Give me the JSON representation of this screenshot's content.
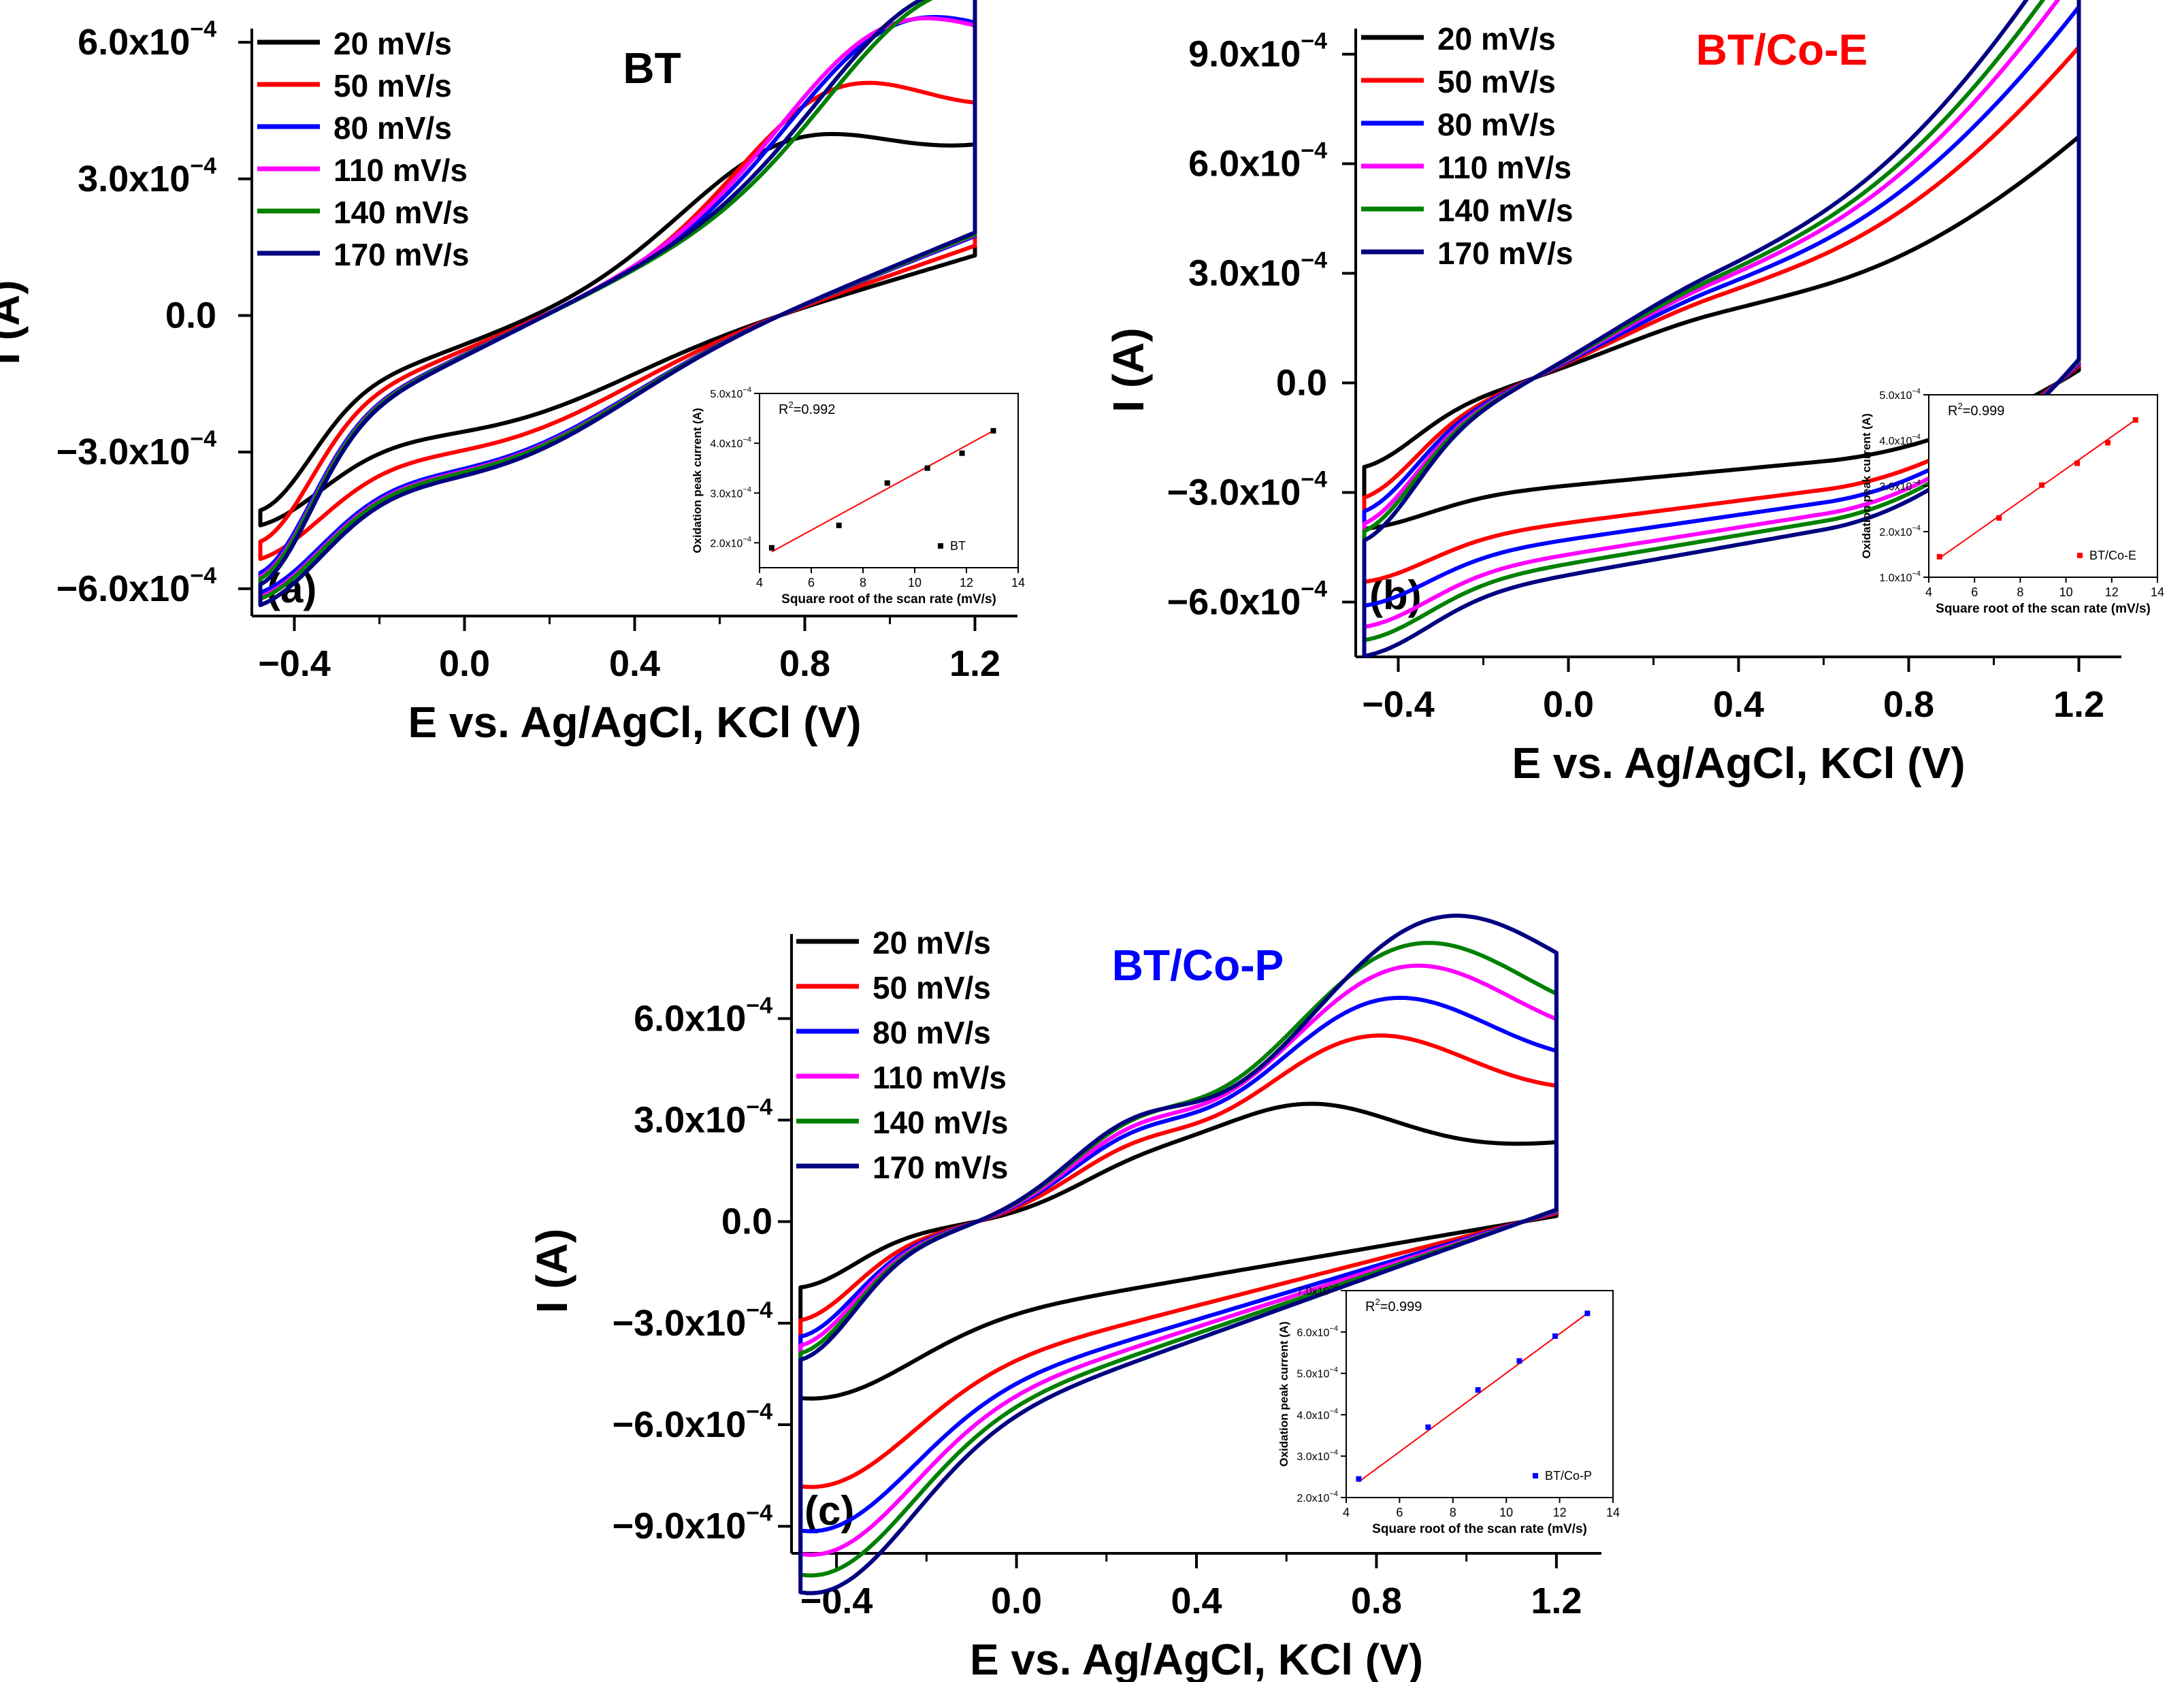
{
  "chart_data": [
    {
      "type": "line",
      "panel_label": "(a)",
      "title": "BT",
      "title_color": "#000000",
      "xlabel": "E vs. Ag/AgCl, KCl (V)",
      "ylabel": "I (A)",
      "xlim": [
        -0.5,
        1.3
      ],
      "ylim": [
        -0.00066,
        0.00063
      ],
      "xticks": [
        {
          "v": -0.4,
          "label": "-0.4"
        },
        {
          "v": 0.0,
          "label": "0.0"
        },
        {
          "v": 0.4,
          "label": "0.4"
        },
        {
          "v": 0.8,
          "label": "0.8"
        },
        {
          "v": 1.2,
          "label": "1.2"
        }
      ],
      "yticks": [
        {
          "v": 0.0006,
          "mant": "6.0x10",
          "exp": "-4"
        },
        {
          "v": 0.0003,
          "mant": "3.0x10",
          "exp": "-4"
        },
        {
          "v": 0.0,
          "mant": "0.0",
          "exp": ""
        },
        {
          "v": -0.0003,
          "mant": "-3.0x10",
          "exp": "-4"
        },
        {
          "v": -0.0006,
          "mant": "-6.0x10",
          "exp": "-4"
        }
      ],
      "series": [
        {
          "name": "20 mV/s",
          "color": "#000000",
          "scale": 1.0,
          "pos": 0.75,
          "peak": 0.00019,
          "wid": 0.24
        },
        {
          "name": "50 mV/s",
          "color": "#ff0000",
          "scale": 1.16,
          "pos": 0.86,
          "peak": 0.00023,
          "wid": 0.22
        },
        {
          "name": "80 mV/s",
          "color": "#0000ff",
          "scale": 1.32,
          "pos": 1.0,
          "peak": 0.00027,
          "wid": 0.24
        },
        {
          "name": "110 mV/s",
          "color": "#ff00ff",
          "scale": 1.34,
          "pos": 0.98,
          "peak": 0.00027,
          "wid": 0.24
        },
        {
          "name": "140 mV/s",
          "color": "#008000",
          "scale": 1.35,
          "pos": 1.1,
          "peak": 0.00028,
          "wid": 0.25
        },
        {
          "name": "170 mV/s",
          "color": "#000080",
          "scale": 1.38,
          "pos": 1.08,
          "peak": 0.00028,
          "wid": 0.25
        }
      ],
      "curve_model": {
        "slope_fwd": 0.00034,
        "slope_rev": 0.00028,
        "bias_fwd": 2e-05,
        "bias_rev": -5e-05,
        "cross_fwd": 0.25,
        "cross_rev": 0.55,
        "peak_rev": 6e-05,
        "pos_rev": 0.15,
        "wid_rev": 0.25
      },
      "inset": {
        "xlabel": "Square root of the scan rate (mV/s)",
        "ylabel": "Oxidation peak current (A)",
        "xlim": [
          4,
          14
        ],
        "ylim": [
          0.00015,
          0.0005
        ],
        "xticks": [
          "4",
          "6",
          "8",
          "10",
          "12",
          "14"
        ],
        "yticks": [
          {
            "v": 0.0002,
            "label": "2.0x10"
          },
          {
            "v": 0.0003,
            "label": "3.0x10"
          },
          {
            "v": 0.0004,
            "label": "4.0x10"
          },
          {
            "v": 0.0005,
            "label": "5.0x10"
          }
        ],
        "r2": "R2=0.992",
        "legend": "BT",
        "marker_color": "#000000",
        "x": [
          4.47,
          7.07,
          8.94,
          10.49,
          11.83,
          13.04
        ],
        "y": [
          0.00019,
          0.000235,
          0.00032,
          0.00035,
          0.00038,
          0.000425
        ],
        "fit": [
          [
            4.47,
            0.000182
          ],
          [
            13.04,
            0.000425
          ]
        ]
      }
    },
    {
      "type": "line",
      "panel_label": "(b)",
      "title": "BT/Co-E",
      "title_color": "#ff0000",
      "xlabel": "E vs. Ag/AgCl, KCl (V)",
      "ylabel": "I (A)",
      "xlim": [
        -0.5,
        1.3
      ],
      "ylim": [
        -0.00075,
        0.00097
      ],
      "xticks": [
        {
          "v": -0.4,
          "label": "-0.4"
        },
        {
          "v": 0.0,
          "label": "0.0"
        },
        {
          "v": 0.4,
          "label": "0.4"
        },
        {
          "v": 0.8,
          "label": "0.8"
        },
        {
          "v": 1.2,
          "label": "1.2"
        }
      ],
      "yticks": [
        {
          "v": 0.0009,
          "mant": "9.0x10",
          "exp": "-4"
        },
        {
          "v": 0.0006,
          "mant": "6.0x10",
          "exp": "-4"
        },
        {
          "v": 0.0003,
          "mant": "3.0x10",
          "exp": "-4"
        },
        {
          "v": 0.0,
          "mant": "0.0",
          "exp": ""
        },
        {
          "v": -0.0003,
          "mant": "-3.0x10",
          "exp": "-4"
        },
        {
          "v": -0.0006,
          "mant": "-6.0x10",
          "exp": "-4"
        }
      ],
      "series": [
        {
          "name": "20 mV/s",
          "color": "#000000",
          "scale": 0.55,
          "pos": 0.35,
          "peak": 6e-05,
          "wid": 0.25
        },
        {
          "name": "50 mV/s",
          "color": "#ff0000",
          "scale": 0.75,
          "pos": 0.35,
          "peak": 6e-05,
          "wid": 0.25
        },
        {
          "name": "80 mV/s",
          "color": "#0000ff",
          "scale": 0.84,
          "pos": 0.35,
          "peak": 6e-05,
          "wid": 0.25
        },
        {
          "name": "110 mV/s",
          "color": "#ff00ff",
          "scale": 0.92,
          "pos": 0.35,
          "peak": 6e-05,
          "wid": 0.25
        },
        {
          "name": "140 mV/s",
          "color": "#008000",
          "scale": 0.97,
          "pos": 0.35,
          "peak": 6e-05,
          "wid": 0.25
        },
        {
          "name": "170 mV/s",
          "color": "#000080",
          "scale": 1.03,
          "pos": 0.35,
          "peak": 6e-05,
          "wid": 0.25
        }
      ],
      "curve_model": {
        "slope_fwd": 0.00055,
        "slope_rev": 0.0002,
        "bias_fwd": 0.0001,
        "bias_rev": -0.00042,
        "cross_fwd": 0.1,
        "cross_rev": 0.45,
        "peak_rev": 0.0,
        "pos_rev": 0.2,
        "wid_rev": 0.3,
        "tail": 0.0012
      },
      "inset": {
        "xlabel": "Square root of the scan rate (mV/s)",
        "ylabel": "Oxidation peak current (A)",
        "xlim": [
          4,
          14
        ],
        "ylim": [
          0.0001,
          0.0005
        ],
        "xticks": [
          "4",
          "6",
          "8",
          "10",
          "12",
          "14"
        ],
        "yticks": [
          {
            "v": 0.0001,
            "label": "1.0x10"
          },
          {
            "v": 0.0002,
            "label": "2.0x10"
          },
          {
            "v": 0.0003,
            "label": "3.0x10"
          },
          {
            "v": 0.0004,
            "label": "4.0x10"
          },
          {
            "v": 0.0005,
            "label": "5.0x10"
          }
        ],
        "r2": "R2=0.999",
        "legend": "BT/Co-E",
        "marker_color": "#ff0000",
        "x": [
          4.47,
          7.07,
          8.94,
          10.49,
          11.83,
          13.04
        ],
        "y": [
          0.000145,
          0.00023,
          0.000302,
          0.00035,
          0.000395,
          0.000445
        ],
        "fit": [
          [
            4.47,
            0.000142
          ],
          [
            13.04,
            0.000445
          ]
        ]
      }
    },
    {
      "type": "line",
      "panel_label": "(c)",
      "title": "BT/Co-P",
      "title_color": "#0000ff",
      "xlabel": "E vs. Ag/AgCl, KCl (V)",
      "ylabel": "I (A)",
      "xlim": [
        -0.5,
        1.3
      ],
      "ylim": [
        -0.00098,
        0.00085
      ],
      "xticks": [
        {
          "v": -0.4,
          "label": "-0.4"
        },
        {
          "v": 0.0,
          "label": "0.0"
        },
        {
          "v": 0.4,
          "label": "0.4"
        },
        {
          "v": 0.8,
          "label": "0.8"
        },
        {
          "v": 1.2,
          "label": "1.2"
        }
      ],
      "yticks": [
        {
          "v": 0.0006,
          "mant": "6.0x10",
          "exp": "-4"
        },
        {
          "v": 0.0003,
          "mant": "3.0x10",
          "exp": "-4"
        },
        {
          "v": 0.0,
          "mant": "0.0",
          "exp": ""
        },
        {
          "v": -0.0003,
          "mant": "-3.0x10",
          "exp": "-4"
        },
        {
          "v": -0.0006,
          "mant": "-6.0x10",
          "exp": "-4"
        },
        {
          "v": -0.0009,
          "mant": "-9.0x10",
          "exp": "-4"
        }
      ],
      "series": [
        {
          "name": "20 mV/s",
          "color": "#000000",
          "scale": 0.6,
          "pos": 0.62,
          "peak": 0.00022,
          "wid": 0.22
        },
        {
          "name": "50 mV/s",
          "color": "#ff0000",
          "scale": 0.9,
          "pos": 0.76,
          "peak": 0.00032,
          "wid": 0.24
        },
        {
          "name": "80 mV/s",
          "color": "#0000ff",
          "scale": 1.05,
          "pos": 0.8,
          "peak": 0.00038,
          "wid": 0.25
        },
        {
          "name": "110 mV/s",
          "color": "#ff00ff",
          "scale": 1.13,
          "pos": 0.84,
          "peak": 0.00044,
          "wid": 0.26
        },
        {
          "name": "140 mV/s",
          "color": "#008000",
          "scale": 1.2,
          "pos": 0.86,
          "peak": 0.00048,
          "wid": 0.27
        },
        {
          "name": "170 mV/s",
          "color": "#000080",
          "scale": 1.26,
          "pos": 0.92,
          "peak": 0.00052,
          "wid": 0.28
        }
      ],
      "curve_model": {
        "slope_fwd": 0.0003,
        "slope_rev": 0.00038,
        "bias_fwd": 2e-05,
        "bias_rev": -0.0002,
        "cross_fwd": 0.0,
        "cross_rev": 0.6,
        "peak_rev": 0.00018,
        "pos_rev": -0.35,
        "wid_rev": 0.18,
        "shoulder": 0.00012
      },
      "inset": {
        "xlabel": "Square root of the scan rate (mV/s)",
        "ylabel": "Oxidation peak current (A)",
        "xlim": [
          4,
          14
        ],
        "ylim": [
          0.0002,
          0.0007
        ],
        "xticks": [
          "4",
          "6",
          "8",
          "10",
          "12",
          "14"
        ],
        "yticks": [
          {
            "v": 0.0002,
            "label": "2.0x10"
          },
          {
            "v": 0.0003,
            "label": "3.0x10"
          },
          {
            "v": 0.0004,
            "label": "4.0x10"
          },
          {
            "v": 0.0005,
            "label": "5.0x10"
          },
          {
            "v": 0.0006,
            "label": "6.0x10"
          },
          {
            "v": 0.0007,
            "label": "7.0x10"
          }
        ],
        "r2": "R2=0.999",
        "legend": "BT/Co-P",
        "marker_color": "#0000ff",
        "x": [
          4.47,
          7.07,
          8.94,
          10.49,
          11.83,
          13.04
        ],
        "y": [
          0.000245,
          0.00037,
          0.00046,
          0.00053,
          0.00059,
          0.000645
        ],
        "fit": [
          [
            4.47,
            0.000238
          ],
          [
            13.04,
            0.000645
          ]
        ]
      }
    }
  ]
}
